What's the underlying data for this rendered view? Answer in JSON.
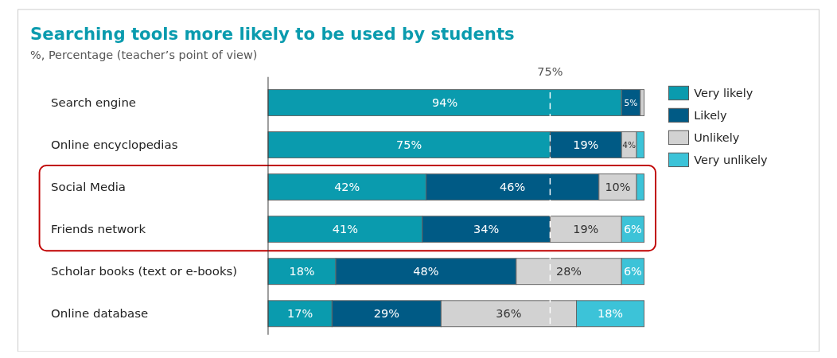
{
  "chart_data": {
    "type": "bar",
    "orientation": "horizontal",
    "stacked": true,
    "title": "Searching tools more likely to be used by students",
    "subtitle": "%, Percentage (teacher’s point of view)",
    "categories": [
      "Search engine",
      "Online encyclopedias",
      "Social Media",
      "Friends network",
      "Scholar books (text or e-books)",
      "Online database"
    ],
    "xlim": [
      0,
      100
    ],
    "legend": "right",
    "series": [
      {
        "name": "Very likely",
        "color": "#0a9bae",
        "values": [
          94,
          75,
          42,
          41,
          18,
          17
        ],
        "value_labels": [
          "94%",
          "75%",
          "42%",
          "41%",
          "18%",
          "17%"
        ]
      },
      {
        "name": "Likely",
        "color": "#005a85",
        "values": [
          5,
          19,
          46,
          34,
          48,
          29
        ],
        "value_labels": [
          "5%",
          "19%",
          "46%",
          "34%",
          "48%",
          "29%"
        ]
      },
      {
        "name": "Unlikely",
        "color": "#d2d2d2",
        "values": [
          1,
          4,
          10,
          19,
          28,
          36
        ],
        "value_labels": [
          null,
          "4%",
          "10%",
          "19%",
          "28%",
          "36%"
        ]
      },
      {
        "name": "Very unlikely",
        "color": "#3cc3d8",
        "values": [
          0,
          2,
          2,
          6,
          6,
          18
        ],
        "value_labels": [
          null,
          null,
          null,
          "6%",
          "6%",
          "18%"
        ]
      }
    ],
    "ref_lines": [
      {
        "axis": "x",
        "value": 75,
        "label": "75%",
        "color": "#ffffff",
        "line_style": "dashed"
      }
    ]
  }
}
